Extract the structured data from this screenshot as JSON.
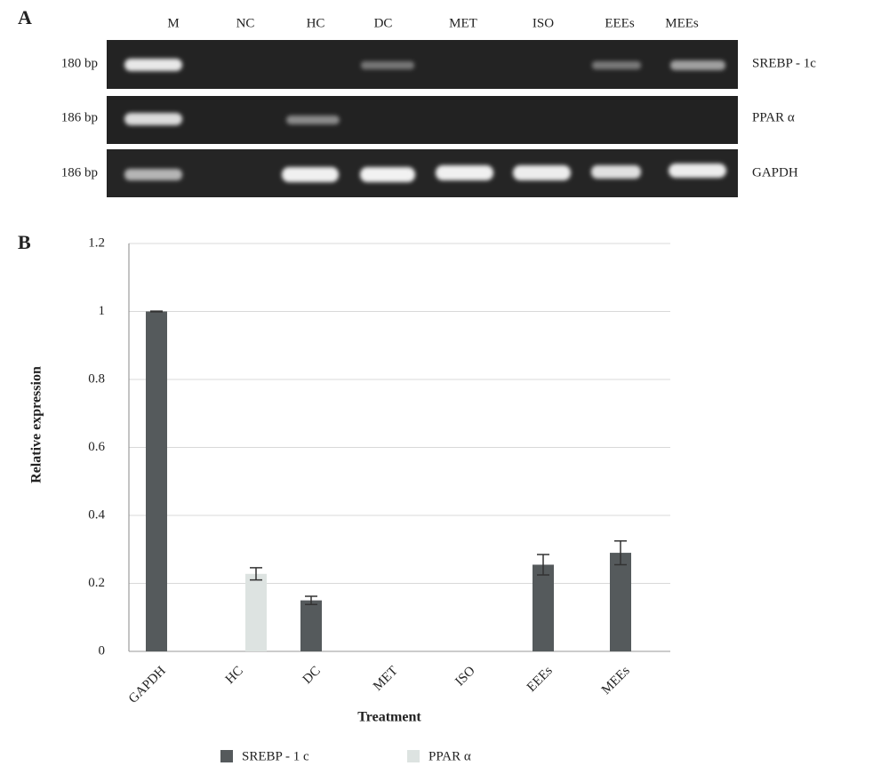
{
  "panel_a": {
    "label": "A",
    "lanes": [
      "M",
      "NC",
      "HC",
      "DC",
      "MET",
      "ISO",
      "EEEs",
      "MEEs"
    ],
    "rows": [
      {
        "size": "180 bp",
        "gene": "SREBP - 1c"
      },
      {
        "size": "186 bp",
        "gene": "PPAR α"
      },
      {
        "size": "186 bp",
        "gene": "GAPDH"
      }
    ]
  },
  "chart_data": {
    "type": "bar",
    "panel_label": "B",
    "x_label": "Treatment",
    "y_label": "Relative expression",
    "categories": [
      "GAPDH",
      "HC",
      "DC",
      "MET",
      "ISO",
      "EEEs",
      "MEEs"
    ],
    "series": [
      {
        "name": "SREBP - 1 c",
        "color": "#555a5c",
        "values": [
          1.0,
          null,
          0.15,
          null,
          null,
          0.255,
          0.29
        ],
        "errors": [
          0.001,
          null,
          0.012,
          null,
          null,
          0.03,
          0.035
        ]
      },
      {
        "name": "PPAR α",
        "color": "#dde3e1",
        "values": [
          null,
          0.228,
          null,
          null,
          null,
          null,
          null
        ],
        "errors": [
          null,
          0.018,
          null,
          null,
          null,
          null,
          null
        ]
      }
    ],
    "ylim": [
      0,
      1.2
    ],
    "yticks": [
      0,
      0.2,
      0.4,
      0.6,
      0.8,
      1,
      1.2
    ],
    "grid": true
  }
}
